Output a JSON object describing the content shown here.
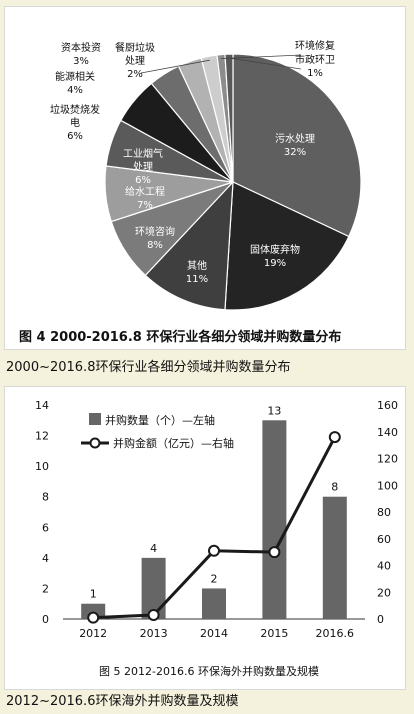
{
  "chart_data": [
    {
      "type": "pie",
      "title": "图 4  2000-2016.8 环保行业各细分领域并购数量分布",
      "slices": [
        {
          "label": "污水处理",
          "value": 32,
          "pct": "32%",
          "color": "#5f5f5f",
          "text_color": "#ffffff"
        },
        {
          "label": "固体废弃物",
          "value": 19,
          "pct": "19%",
          "color": "#242424",
          "text_color": "#ffffff"
        },
        {
          "label": "其他",
          "value": 11,
          "pct": "11%",
          "color": "#3f3f3f",
          "text_color": "#ffffff"
        },
        {
          "label": "环境咨询",
          "value": 8,
          "pct": "8%",
          "color": "#7b7b7b",
          "text_color": "#ffffff"
        },
        {
          "label": "给水工程",
          "value": 7,
          "pct": "7%",
          "color": "#9d9d9d",
          "text_color": "#ffffff"
        },
        {
          "label": "工业烟气处理",
          "value": 6,
          "pct": "6%",
          "color": "#5a5a5a",
          "text_color": "#ffffff"
        },
        {
          "label": "垃圾焚烧发电",
          "value": 6,
          "pct": "6%",
          "color": "#1c1c1c",
          "text_color": "#111111"
        },
        {
          "label": "能源相关",
          "value": 4,
          "pct": "4%",
          "color": "#6d6d6d",
          "text_color": "#111111"
        },
        {
          "label": "资本投资",
          "value": 3,
          "pct": "3%",
          "color": "#b2b2b2",
          "text_color": "#111111"
        },
        {
          "label": "餐厨垃圾处理",
          "value": 2,
          "pct": "2%",
          "color": "#cdcdcd",
          "text_color": "#111111"
        },
        {
          "label": "环境修复",
          "value": 1,
          "pct": "",
          "color": "#8c8c8c",
          "text_color": "#111111"
        },
        {
          "label": "市政环卫",
          "value": 1,
          "pct": "1%",
          "color": "#585858",
          "text_color": "#111111"
        }
      ]
    },
    {
      "type": "bar",
      "title": "图 5 2012-2016.6 环保海外并购数量及规模",
      "categories": [
        "2012",
        "2013",
        "2014",
        "2015",
        "2016.6"
      ],
      "series": [
        {
          "name": "并购数量（个）—左轴",
          "type": "bar",
          "axis": "left",
          "values": [
            1,
            4,
            2,
            13,
            8
          ],
          "color": "#666666"
        },
        {
          "name": "并购金额（亿元）—右轴",
          "type": "line",
          "axis": "right",
          "values": [
            1,
            3,
            51,
            50,
            136
          ],
          "color": "#1a1a1a"
        }
      ],
      "ylim_left": [
        0,
        14
      ],
      "ylim_right": [
        0,
        160
      ],
      "left_ticks": [
        "0",
        "2",
        "4",
        "6",
        "8",
        "10",
        "12",
        "14"
      ],
      "right_ticks": [
        "0",
        "20",
        "40",
        "60",
        "80",
        "100",
        "120",
        "140",
        "160"
      ],
      "bar_labels": [
        "1",
        "4",
        "2",
        "13",
        "8"
      ]
    }
  ],
  "captions": {
    "pie_caption": "2000~2016.8环保行业各细分领域并购数量分布",
    "bar_caption": "2012~2016.6环保海外并购数量及规模"
  }
}
